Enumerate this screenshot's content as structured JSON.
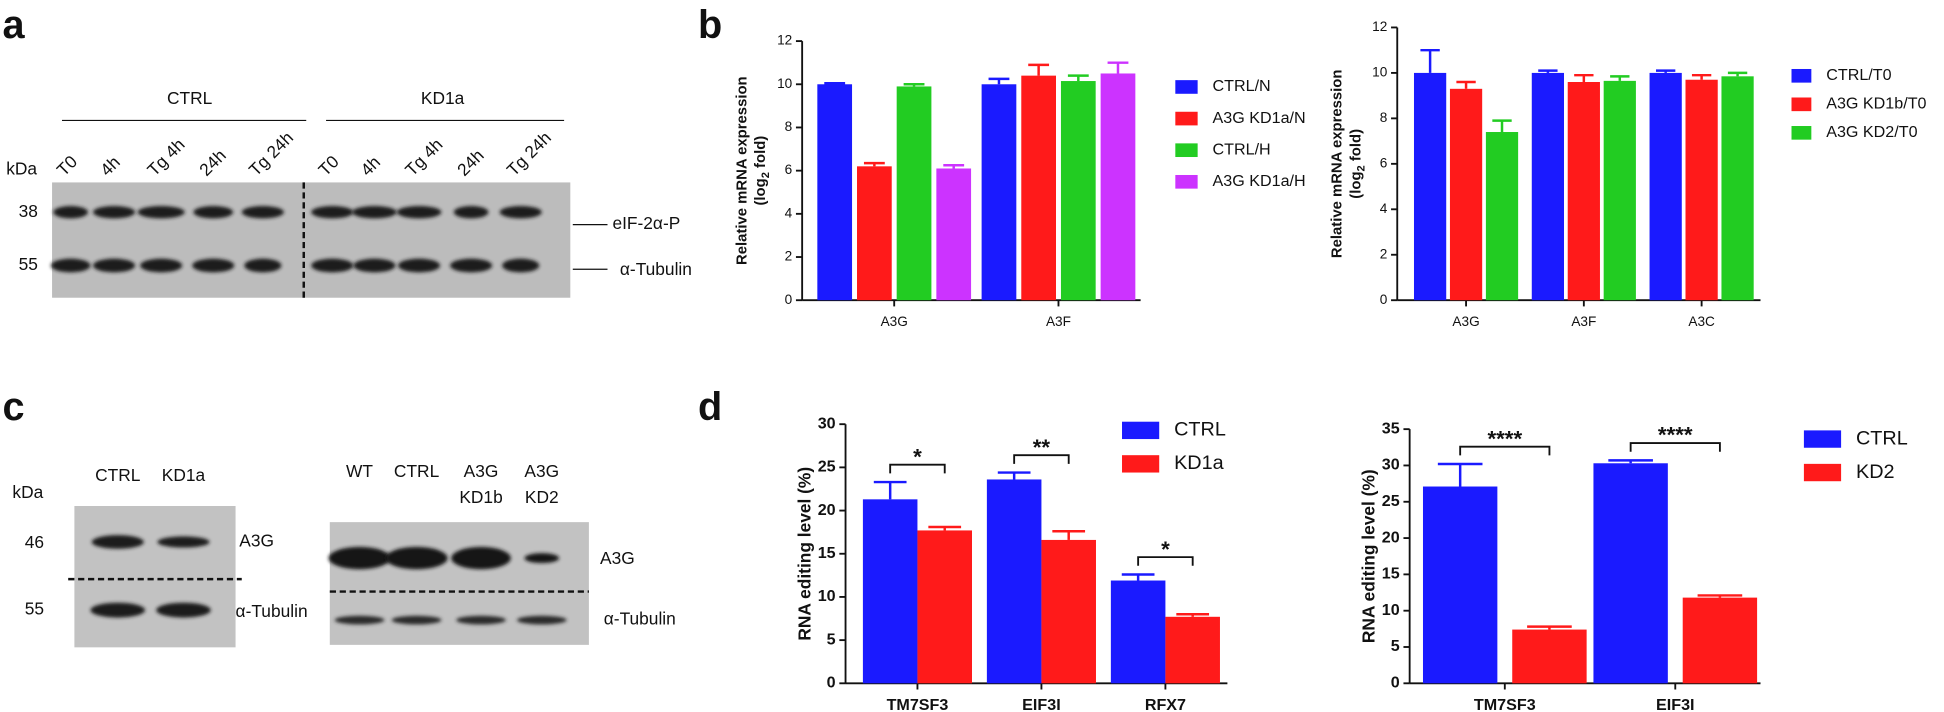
{
  "panel_labels": [
    "a",
    "b",
    "c",
    "d"
  ],
  "blot_a": {
    "groups": [
      "CTRL",
      "KD1a"
    ],
    "lanes": [
      "T0",
      "4h",
      "Tg 4h",
      "24h",
      "Tg 24h",
      "T0",
      "4h",
      "Tg 4h",
      "24h",
      "Tg 24h"
    ],
    "kda_label": "kDa",
    "markers": [
      "38",
      "55"
    ],
    "bands": [
      "eIF-2α-P",
      "α-Tubulin"
    ]
  },
  "blot_c": {
    "kda_label": "kDa",
    "markers": [
      "46",
      "55"
    ],
    "left": {
      "lanes": [
        "CTRL",
        "KD1a"
      ],
      "bands": [
        "A3G",
        "α-Tubulin"
      ]
    },
    "right": {
      "lanes": [
        [
          "WT"
        ],
        [
          "CTRL"
        ],
        [
          "A3G",
          "KD1b"
        ],
        [
          "A3G",
          "KD2"
        ]
      ],
      "bands": [
        "A3G",
        "α-Tubulin"
      ]
    }
  },
  "chart_data": [
    {
      "type": "bar",
      "ylabel": "Relative mRNA expression",
      "ylabel_unit": {
        "prefix": "(log",
        "sub": "2",
        "suffix": " fold)"
      },
      "categories": [
        "A3G",
        "A3F"
      ],
      "ylim": [
        0,
        12
      ],
      "yticks": [
        0,
        2,
        4,
        6,
        8,
        10,
        12
      ],
      "series": [
        {
          "name": "CTRL/N",
          "color": "#1a1aff",
          "values": [
            10.0,
            10.0
          ],
          "errors": [
            0.05,
            0.25
          ]
        },
        {
          "name": "A3G KD1a/N",
          "color": "#ff1a1a",
          "values": [
            6.2,
            10.4
          ],
          "errors": [
            0.15,
            0.5
          ]
        },
        {
          "name": "CTRL/H",
          "color": "#22cc22",
          "values": [
            9.9,
            10.15
          ],
          "errors": [
            0.1,
            0.25
          ]
        },
        {
          "name": "A3G KD1a/H",
          "color": "#cc33ff",
          "values": [
            6.1,
            10.5
          ],
          "errors": [
            0.15,
            0.5
          ]
        }
      ]
    },
    {
      "type": "bar",
      "ylabel": "Relative mRNA expression",
      "ylabel_unit": {
        "prefix": "(log",
        "sub": "2",
        "suffix": " fold)"
      },
      "categories": [
        "A3G",
        "A3F",
        "A3C"
      ],
      "ylim": [
        0,
        12
      ],
      "yticks": [
        0,
        2,
        4,
        6,
        8,
        10,
        12
      ],
      "series": [
        {
          "name": "CTRL/T0",
          "color": "#1a1aff",
          "values": [
            10.0,
            10.0,
            10.0
          ],
          "errors": [
            1.0,
            0.1,
            0.1
          ]
        },
        {
          "name": "A3G KD1b/T0",
          "color": "#ff1a1a",
          "values": [
            9.3,
            9.6,
            9.7
          ],
          "errors": [
            0.3,
            0.3,
            0.2
          ]
        },
        {
          "name": "A3G KD2/T0",
          "color": "#22cc22",
          "values": [
            7.4,
            9.65,
            9.85
          ],
          "errors": [
            0.5,
            0.2,
            0.15
          ]
        }
      ]
    },
    {
      "type": "bar",
      "ylabel": "RNA editing level (%)",
      "categories": [
        "TM7SF3",
        "EIF3I",
        "RFX7"
      ],
      "ylim": [
        0,
        30
      ],
      "yticks": [
        0,
        5,
        10,
        15,
        20,
        25,
        30
      ],
      "series": [
        {
          "name": "CTRL",
          "color": "#1a1aff",
          "values": [
            21.3,
            23.6,
            11.9
          ],
          "errors": [
            2.0,
            0.8,
            0.7
          ]
        },
        {
          "name": "KD1a",
          "color": "#ff1a1a",
          "values": [
            17.7,
            16.6,
            7.7
          ],
          "errors": [
            0.4,
            1.0,
            0.3
          ]
        }
      ],
      "annotations": [
        {
          "label": "*",
          "category": "TM7SF3"
        },
        {
          "label": "**",
          "category": "EIF3I"
        },
        {
          "label": "*",
          "category": "RFX7"
        }
      ]
    },
    {
      "type": "bar",
      "ylabel": "RNA editing level (%)",
      "categories": [
        "TM7SF3",
        "EIF3I"
      ],
      "ylim": [
        0,
        35
      ],
      "yticks": [
        0,
        5,
        10,
        15,
        20,
        25,
        30,
        35
      ],
      "series": [
        {
          "name": "CTRL",
          "color": "#1a1aff",
          "values": [
            27.1,
            30.3
          ],
          "errors": [
            3.1,
            0.4
          ]
        },
        {
          "name": "KD2",
          "color": "#ff1a1a",
          "values": [
            7.4,
            11.8
          ],
          "errors": [
            0.4,
            0.3
          ]
        }
      ],
      "annotations": [
        {
          "label": "****",
          "category": "TM7SF3"
        },
        {
          "label": "****",
          "category": "EIF3I"
        }
      ]
    }
  ]
}
